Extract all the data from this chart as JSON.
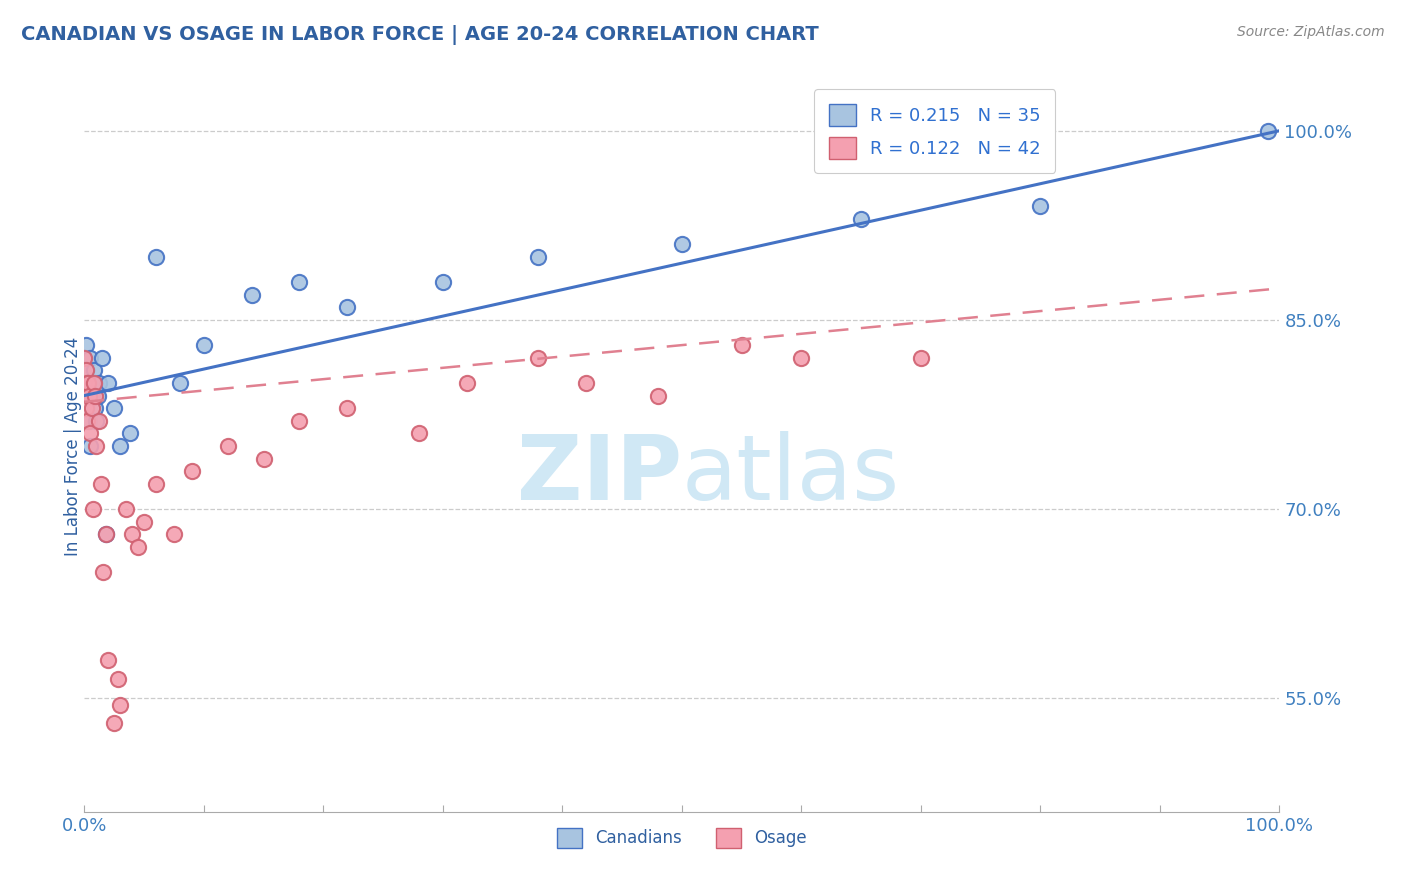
{
  "title": "CANADIAN VS OSAGE IN LABOR FORCE | AGE 20-24 CORRELATION CHART",
  "source_text": "Source: ZipAtlas.com",
  "ylabel": "In Labor Force | Age 20-24",
  "xlim": [
    0.0,
    1.0
  ],
  "ylim": [
    0.46,
    1.04
  ],
  "yticks": [
    0.55,
    0.7,
    0.85,
    1.0
  ],
  "ytick_labels": [
    "55.0%",
    "70.0%",
    "85.0%",
    "100.0%"
  ],
  "canadians_x": [
    0.0,
    0.0,
    0.0,
    0.001,
    0.001,
    0.002,
    0.003,
    0.004,
    0.005,
    0.005,
    0.006,
    0.007,
    0.008,
    0.009,
    0.01,
    0.011,
    0.012,
    0.015,
    0.018,
    0.02,
    0.025,
    0.03,
    0.038,
    0.06,
    0.08,
    0.1,
    0.14,
    0.18,
    0.22,
    0.3,
    0.38,
    0.5,
    0.65,
    0.8,
    0.99
  ],
  "canadians_y": [
    0.82,
    0.8,
    0.78,
    0.81,
    0.83,
    0.8,
    0.79,
    0.77,
    0.75,
    0.82,
    0.79,
    0.8,
    0.81,
    0.78,
    0.77,
    0.79,
    0.8,
    0.82,
    0.68,
    0.8,
    0.78,
    0.75,
    0.76,
    0.9,
    0.8,
    0.83,
    0.87,
    0.88,
    0.86,
    0.88,
    0.9,
    0.91,
    0.93,
    0.94,
    1.0
  ],
  "osage_x": [
    0.0,
    0.0,
    0.0,
    0.001,
    0.001,
    0.002,
    0.002,
    0.003,
    0.004,
    0.005,
    0.006,
    0.007,
    0.008,
    0.009,
    0.01,
    0.012,
    0.014,
    0.016,
    0.018,
    0.02,
    0.025,
    0.028,
    0.03,
    0.035,
    0.04,
    0.045,
    0.05,
    0.06,
    0.075,
    0.09,
    0.12,
    0.15,
    0.18,
    0.22,
    0.28,
    0.32,
    0.38,
    0.42,
    0.48,
    0.55,
    0.6,
    0.7
  ],
  "osage_y": [
    0.8,
    0.82,
    0.79,
    0.81,
    0.78,
    0.8,
    0.77,
    0.8,
    0.79,
    0.76,
    0.78,
    0.7,
    0.8,
    0.79,
    0.75,
    0.77,
    0.72,
    0.65,
    0.68,
    0.58,
    0.53,
    0.565,
    0.545,
    0.7,
    0.68,
    0.67,
    0.69,
    0.72,
    0.68,
    0.73,
    0.75,
    0.74,
    0.77,
    0.78,
    0.76,
    0.8,
    0.82,
    0.8,
    0.79,
    0.83,
    0.82,
    0.82
  ],
  "R_canadian": 0.215,
  "N_canadian": 35,
  "R_osage": 0.122,
  "N_osage": 42,
  "canadian_color": "#a8c4e0",
  "osage_color": "#f4a0b0",
  "canadian_line_color": "#4472c4",
  "osage_line_color": "#e08090",
  "osage_edge_color": "#d06070",
  "watermark_ZIP": "ZIP",
  "watermark_atlas": "atlas",
  "watermark_color": "#d0e8f5",
  "title_color": "#3060a0",
  "axis_label_color": "#3060a0",
  "tick_color": "#4080c0",
  "grid_color": "#cccccc",
  "legend_color": "#3070d0",
  "source_color": "#888888"
}
